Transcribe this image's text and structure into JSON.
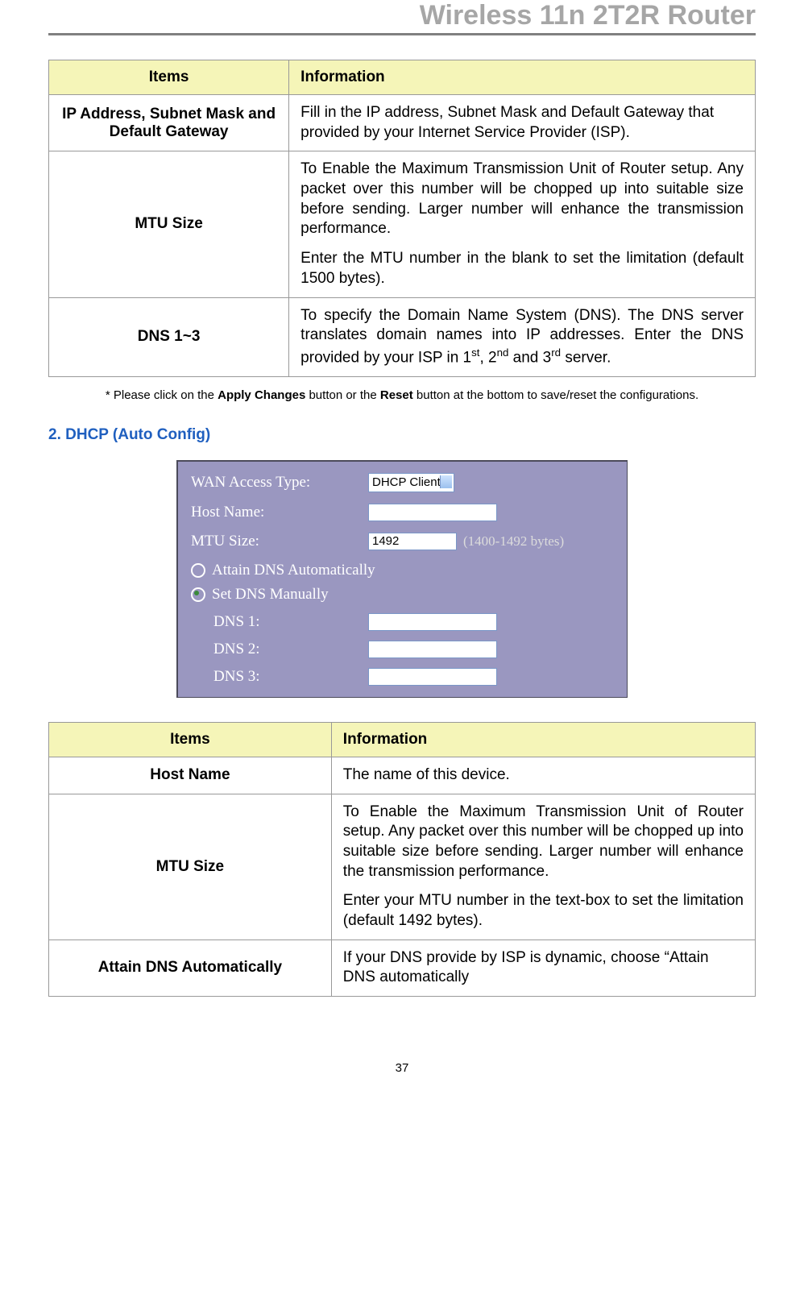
{
  "header": {
    "title": "Wireless 11n 2T2R Router"
  },
  "table1": {
    "headers": {
      "items": "Items",
      "info": "Information"
    },
    "rows": [
      {
        "item": "IP Address, Subnet Mask and Default Gateway",
        "info_html": "Fill in the IP address, Subnet Mask and Default Gateway that provided by your Internet Service Provider (ISP)."
      },
      {
        "item": "MTU Size",
        "info_html": "<p class='para'>To Enable the Maximum Transmission Unit of Router setup. Any packet over this number will be chopped up into suitable size before sending. Larger number will enhance the transmission performance.</p><p class='para'>Enter the MTU number in the blank to set the limitation (default 1500 bytes).</p>"
      },
      {
        "item": "DNS 1~3",
        "info_html": "To specify the Domain Name System (DNS). The DNS server translates domain names into IP addresses. Enter the DNS provided by your ISP in 1<sup>st</sup>, 2<sup>nd</sup> and 3<sup>rd</sup> server."
      }
    ]
  },
  "footnote": {
    "prefix": "* Please click on the ",
    "bold1": "Apply Changes",
    "mid": " button or the ",
    "bold2": "Reset",
    "suffix": " button at the bottom to save/reset the configurations."
  },
  "section_heading": "2. DHCP (Auto Config)",
  "dhcp_panel": {
    "background": "#9a97c0",
    "text_color": "#ffffff",
    "input_bg": "#ffffff",
    "input_border": "#7a97c8",
    "labels": {
      "wan_access_type": "WAN Access Type:",
      "host_name": "Host Name:",
      "mtu_size": "MTU Size:",
      "attain_dns": "Attain DNS Automatically",
      "set_dns": "Set DNS Manually",
      "dns1": "DNS 1:",
      "dns2": "DNS 2:",
      "dns3": "DNS 3:"
    },
    "values": {
      "wan_access_type": "DHCP Client",
      "host_name": "",
      "mtu_size": "1492",
      "mtu_hint": "(1400-1492 bytes)",
      "dns1": "",
      "dns2": "",
      "dns3": ""
    },
    "radio_selected": "set_dns"
  },
  "table2": {
    "headers": {
      "items": "Items",
      "info": "Information"
    },
    "rows": [
      {
        "item": "Host Name",
        "info_html": "The name of this device."
      },
      {
        "item": "MTU Size",
        "info_html": "<p class='para'>To Enable the Maximum Transmission Unit of Router setup. Any packet over this number will be chopped up into suitable size before sending. Larger number will enhance the transmission performance.</p><p class='para'>Enter your MTU number in the text-box to set the limitation (default 1492 bytes).</p>"
      },
      {
        "item": "Attain DNS Automatically",
        "info_html": "If your DNS provide by ISP is dynamic, choose “Attain DNS automatically"
      }
    ]
  },
  "page_number": "37"
}
